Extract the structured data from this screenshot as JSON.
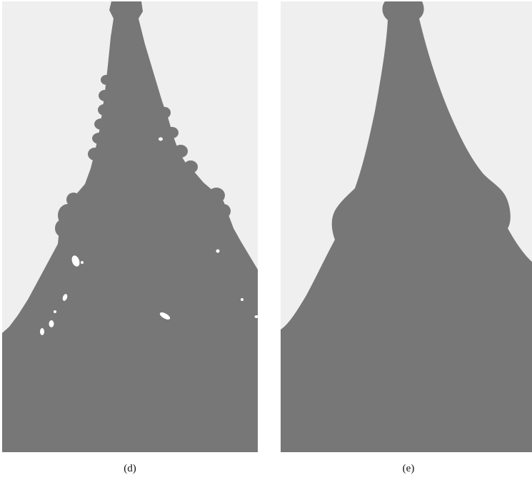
{
  "figure": {
    "panels": [
      {
        "caption": "(d)"
      },
      {
        "caption": "(e)"
      }
    ]
  },
  "colors": {
    "background": "#efefef",
    "shape": "#777777",
    "holes": "#ffffff"
  }
}
